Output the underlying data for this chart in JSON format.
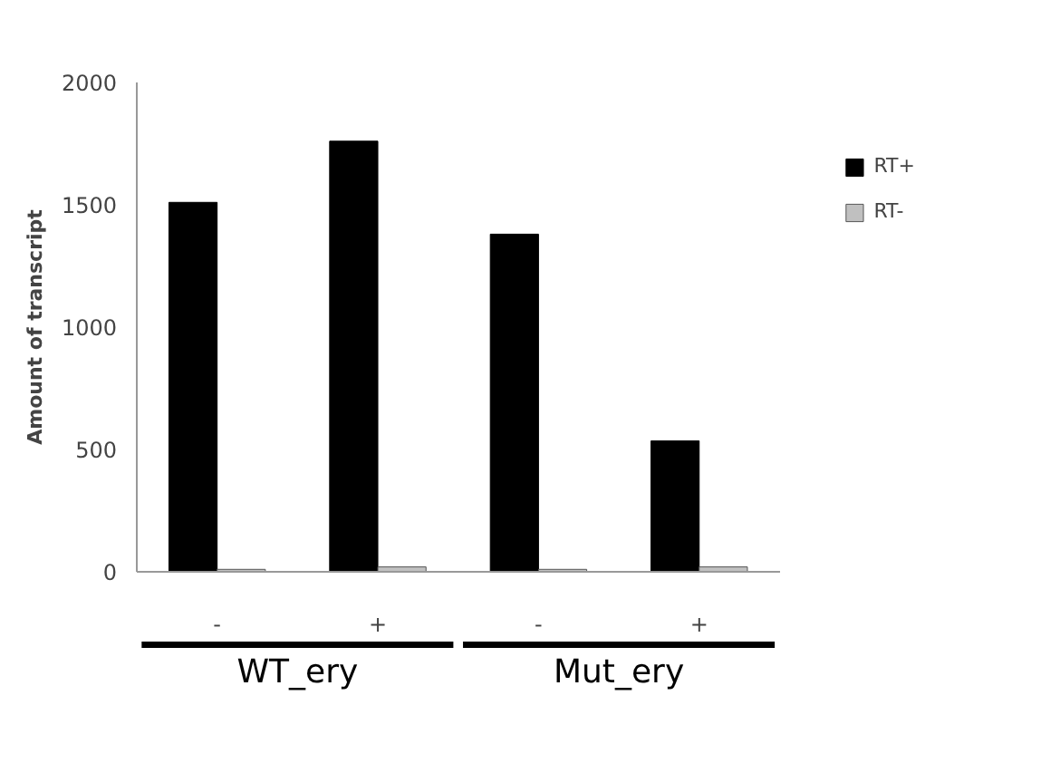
{
  "chart_data": {
    "type": "bar",
    "ylabel": "Amount of transcript",
    "categories": [
      "-",
      "+",
      "-",
      "+"
    ],
    "series": [
      {
        "name": "RT+",
        "color": "#000000",
        "values": [
          1510,
          1760,
          1380,
          535
        ]
      },
      {
        "name": "RT-",
        "color": "#c0c0c0",
        "values": [
          10,
          20,
          10,
          20
        ]
      }
    ],
    "ylim": [
      0,
      2000
    ],
    "yticks": [
      0,
      500,
      1000,
      1500,
      2000
    ],
    "grid": false,
    "legend": "right",
    "annotations": [
      "WT_ery",
      "Mut_ery"
    ]
  }
}
